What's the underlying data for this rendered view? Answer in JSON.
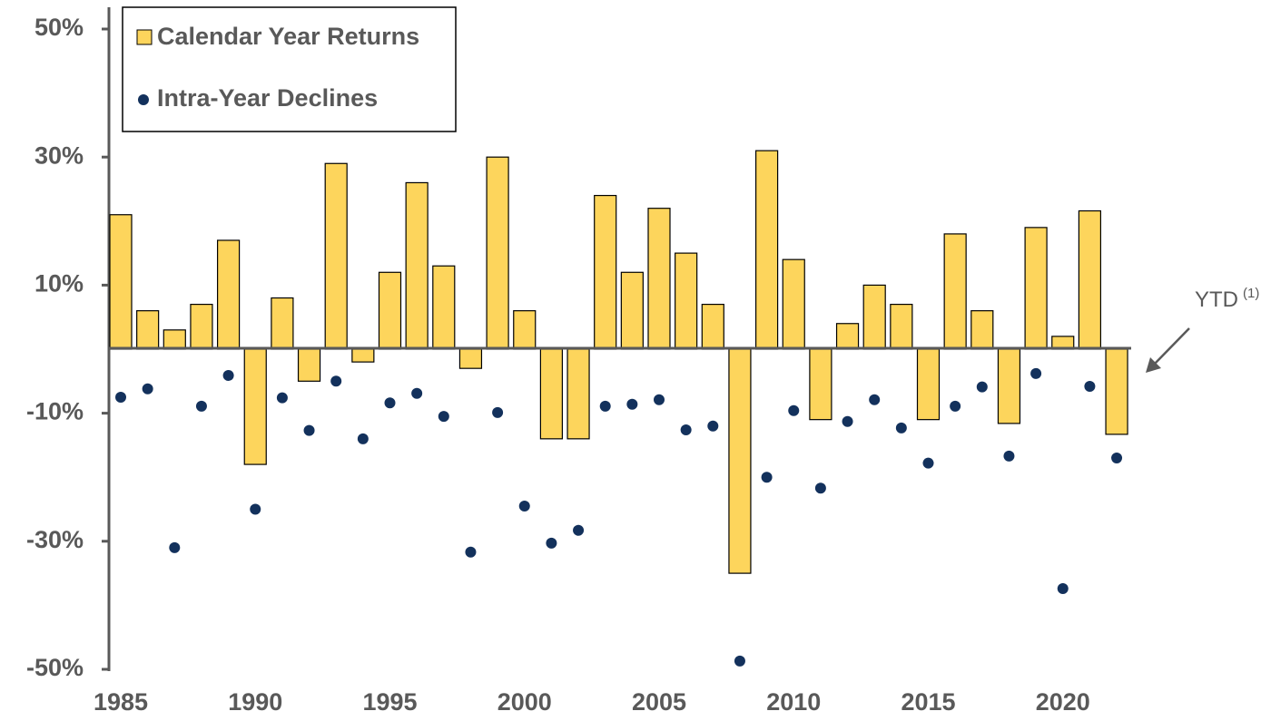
{
  "chart_data": {
    "type": "bar",
    "categories": [
      "1985",
      null,
      null,
      null,
      null,
      "1990",
      null,
      null,
      null,
      null,
      "1995",
      null,
      null,
      null,
      null,
      "2000",
      null,
      null,
      null,
      null,
      "2005",
      null,
      null,
      null,
      null,
      "2010",
      null,
      null,
      null,
      null,
      "2015",
      null,
      null,
      null,
      null,
      "2020",
      null,
      null
    ],
    "series": [
      {
        "name": "Calendar Year Returns",
        "type": "bar",
        "color": "#fdd55c",
        "values": [
          21,
          6,
          3,
          7,
          17,
          -18,
          8,
          -5,
          29,
          -2,
          12,
          26,
          13,
          -3,
          30,
          6,
          -14,
          -14,
          24,
          12,
          22,
          15,
          7,
          -35,
          31,
          14,
          -11,
          4,
          10,
          7,
          -11,
          18,
          6,
          -11.6,
          19,
          2,
          21.6,
          -13.3
        ]
      },
      {
        "name": "Intra-Year Declines",
        "type": "scatter",
        "color": "#13315c",
        "values": [
          -7.5,
          -6.2,
          -31,
          -8.9,
          -4.1,
          -25,
          -7.6,
          -12.7,
          -5,
          -14,
          -8.4,
          -6.9,
          -10.5,
          -31.7,
          -9.9,
          -24.5,
          -30.3,
          -28.3,
          -8.9,
          -8.6,
          -7.9,
          -12.6,
          -12,
          -48.7,
          -20,
          -9.6,
          -21.7,
          -11.3,
          -7.9,
          -12.3,
          -17.8,
          -8.9,
          -5.9,
          -16.7,
          -3.8,
          -37.4,
          -5.8,
          -17
        ]
      }
    ],
    "ylim": [
      -50,
      50
    ],
    "yticks": [
      {
        "value": -50,
        "label": "-50%"
      },
      {
        "value": -30,
        "label": "-30%"
      },
      {
        "value": -10,
        "label": "-10%"
      },
      {
        "value": 10,
        "label": "10%"
      },
      {
        "value": 30,
        "label": "30%"
      },
      {
        "value": 50,
        "label": "50%"
      }
    ],
    "legend": "upper left",
    "annotation": {
      "text": "YTD",
      "superscript": "(1)"
    }
  }
}
